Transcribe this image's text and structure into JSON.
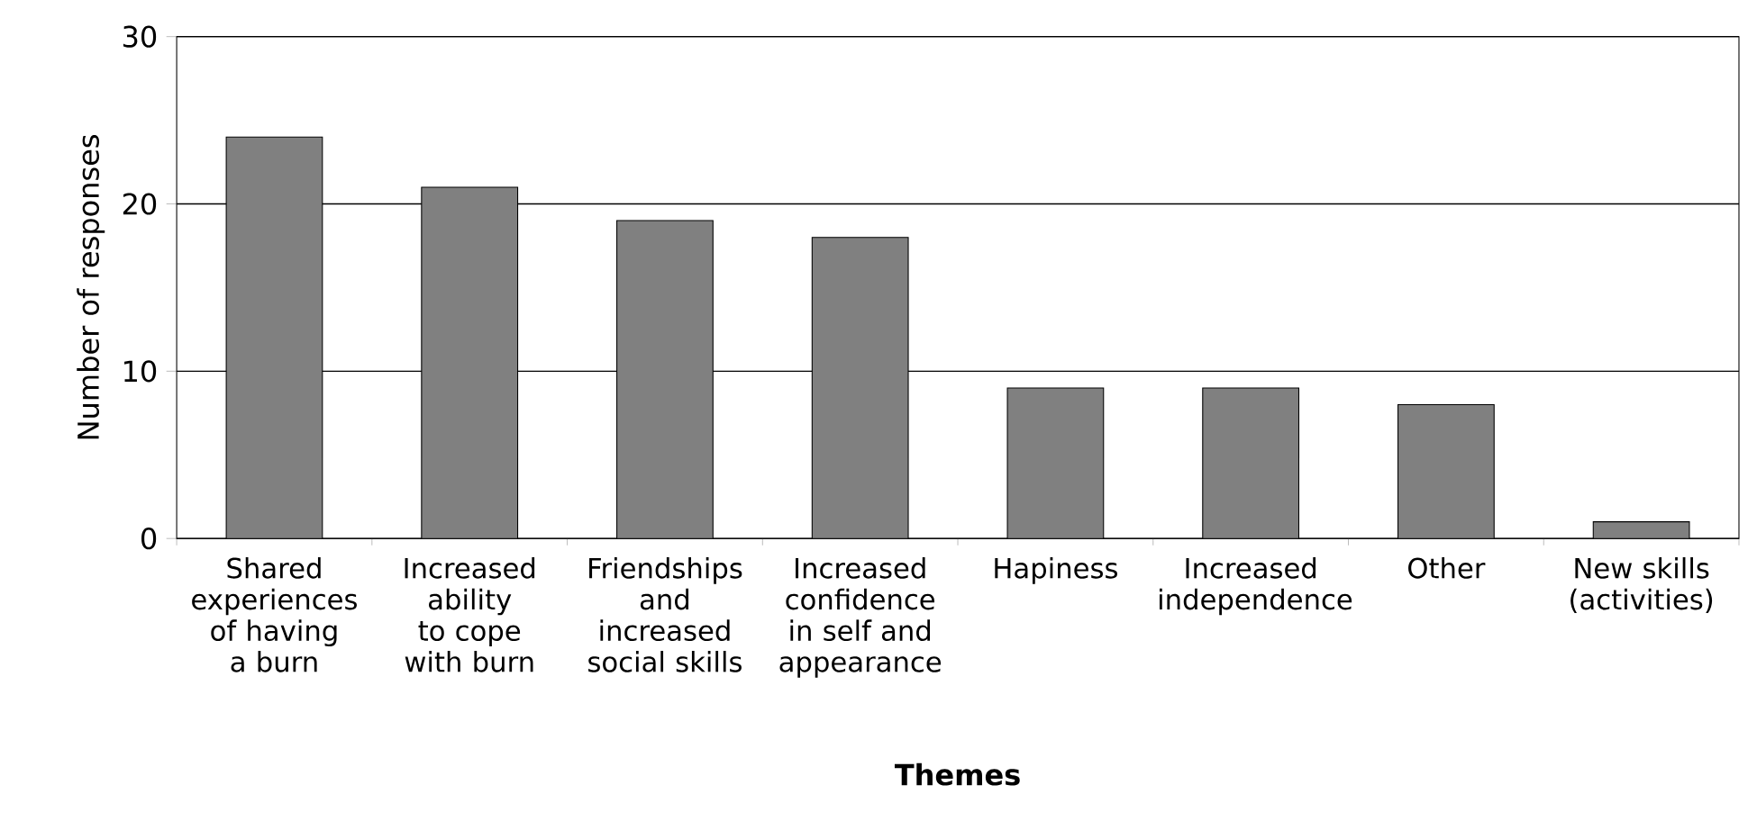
{
  "chart_data": {
    "type": "bar",
    "xlabel": "Themes",
    "ylabel": "Number of responses",
    "categories": [
      "Shared experiences of having a burn",
      "Increased ability to cope with burn",
      "Friendships and increased social skills",
      "Increased confidence in self and appearance",
      "Hapiness",
      "Increased independence",
      "Other",
      "New skills (activities)"
    ],
    "values": [
      24,
      21,
      19,
      18,
      9,
      9,
      8,
      1
    ],
    "color": "#808080",
    "ylim": [
      0,
      30
    ],
    "yticks": [
      0,
      10,
      20,
      30
    ],
    "grid": "y"
  }
}
